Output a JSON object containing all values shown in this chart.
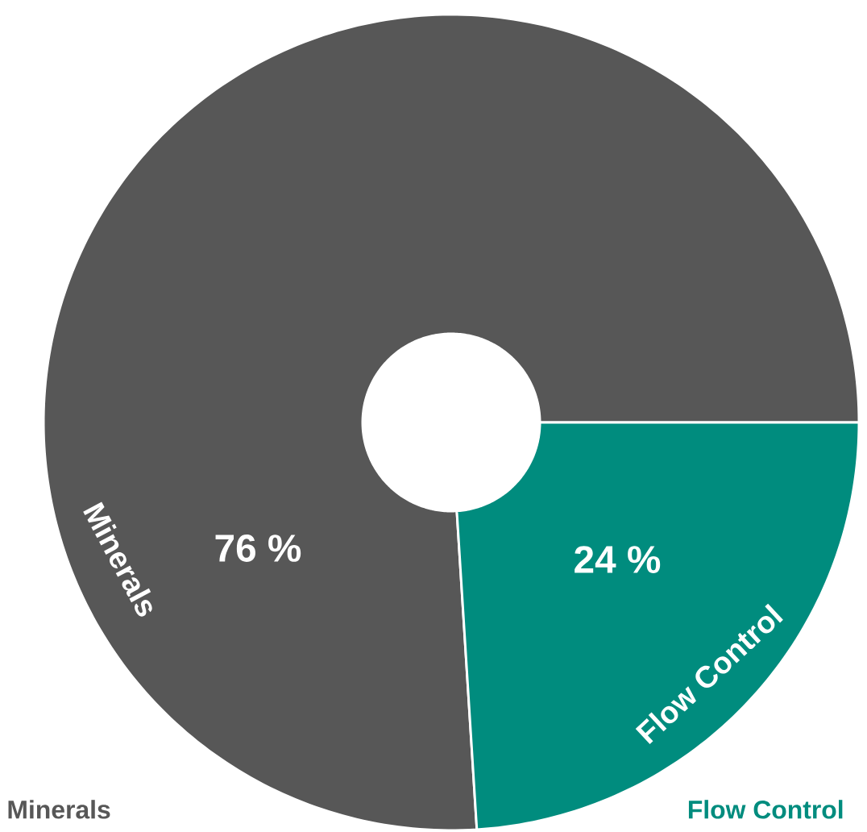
{
  "chart_data": {
    "type": "donut",
    "categories": [
      "Minerals",
      "Flow Control"
    ],
    "values": [
      76,
      24
    ],
    "colors": [
      "#575757",
      "#008c7e"
    ],
    "value_labels": [
      "76 %",
      "24 %"
    ]
  }
}
